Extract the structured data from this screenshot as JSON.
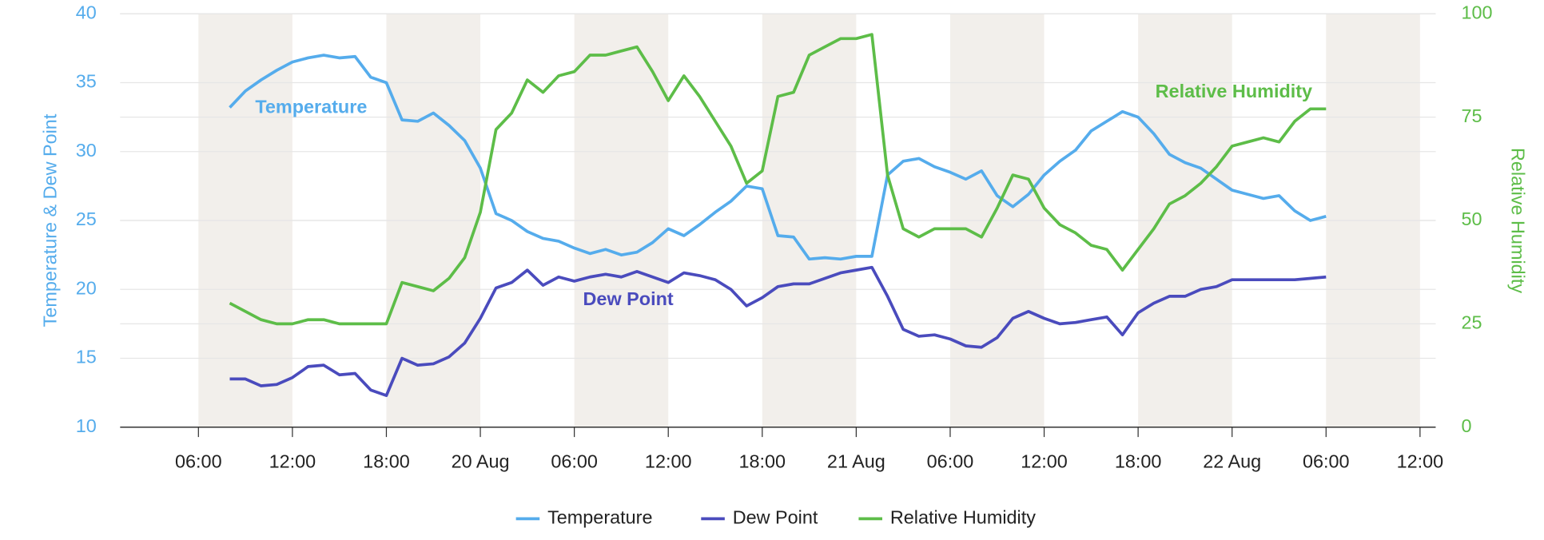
{
  "chart_data": {
    "type": "line",
    "y_axis_title": "Temperature & Dew Point",
    "y2_axis_title": "Relative Humidity",
    "annotations": [
      "Temperature",
      "Dew Point",
      "Relative Humidity"
    ],
    "x": [
      "19 Aug 08:00",
      "19 Aug 09:00",
      "19 Aug 10:00",
      "19 Aug 11:00",
      "19 Aug 12:00",
      "19 Aug 13:00",
      "19 Aug 14:00",
      "19 Aug 15:00",
      "19 Aug 16:00",
      "19 Aug 17:00",
      "19 Aug 18:00",
      "19 Aug 19:00",
      "19 Aug 20:00",
      "19 Aug 21:00",
      "19 Aug 22:00",
      "19 Aug 23:00",
      "20 Aug 00:00",
      "20 Aug 01:00",
      "20 Aug 02:00",
      "20 Aug 03:00",
      "20 Aug 04:00",
      "20 Aug 05:00",
      "20 Aug 06:00",
      "20 Aug 07:00",
      "20 Aug 08:00",
      "20 Aug 09:00",
      "20 Aug 10:00",
      "20 Aug 11:00",
      "20 Aug 12:00",
      "20 Aug 13:00",
      "20 Aug 14:00",
      "20 Aug 15:00",
      "20 Aug 16:00",
      "20 Aug 17:00",
      "20 Aug 18:00",
      "20 Aug 19:00",
      "20 Aug 20:00",
      "20 Aug 21:00",
      "20 Aug 22:00",
      "20 Aug 23:00",
      "21 Aug 00:00",
      "21 Aug 01:00",
      "21 Aug 02:00",
      "21 Aug 03:00",
      "21 Aug 04:00",
      "21 Aug 05:00",
      "21 Aug 06:00",
      "21 Aug 07:00",
      "21 Aug 08:00",
      "21 Aug 09:00",
      "21 Aug 10:00",
      "21 Aug 11:00",
      "21 Aug 12:00",
      "21 Aug 13:00",
      "21 Aug 14:00",
      "21 Aug 15:00",
      "21 Aug 16:00",
      "21 Aug 17:00",
      "21 Aug 18:00",
      "21 Aug 19:00",
      "21 Aug 20:00",
      "21 Aug 21:00",
      "21 Aug 22:00",
      "21 Aug 23:00",
      "22 Aug 00:00",
      "22 Aug 01:00",
      "22 Aug 02:00",
      "22 Aug 03:00",
      "22 Aug 04:00",
      "22 Aug 05:00",
      "22 Aug 06:00"
    ],
    "series": [
      {
        "name": "Temperature",
        "color": "#55acec",
        "axis": "y",
        "values": [
          33.2,
          34.4,
          35.2,
          35.9,
          36.5,
          36.8,
          37.0,
          36.8,
          36.9,
          35.4,
          35.0,
          32.3,
          32.2,
          32.8,
          31.9,
          30.8,
          28.8,
          25.5,
          25.0,
          24.2,
          23.7,
          23.5,
          23.0,
          22.6,
          22.9,
          22.5,
          22.7,
          23.4,
          24.4,
          23.9,
          24.7,
          25.6,
          26.4,
          27.5,
          27.3,
          23.9,
          23.8,
          22.2,
          22.3,
          22.2,
          22.4,
          22.4,
          28.3,
          29.3,
          29.5,
          28.9,
          28.5,
          28.0,
          28.6,
          26.8,
          26.0,
          26.9,
          28.3,
          29.3,
          30.1,
          31.5,
          32.2,
          32.9,
          32.5,
          31.3,
          29.8,
          29.2,
          28.8,
          28.0,
          27.2,
          26.9,
          26.6,
          26.8,
          25.7,
          25.0,
          25.3
        ]
      },
      {
        "name": "Dew Point",
        "color": "#4a4bbd",
        "axis": "y",
        "values": [
          13.5,
          13.5,
          13.0,
          13.1,
          13.6,
          14.4,
          14.5,
          13.8,
          13.9,
          12.7,
          12.3,
          15.0,
          14.5,
          14.6,
          15.1,
          16.1,
          17.9,
          20.1,
          20.5,
          21.4,
          20.3,
          20.9,
          20.6,
          20.9,
          21.1,
          20.9,
          21.3,
          20.9,
          20.5,
          21.2,
          21.0,
          20.7,
          20.0,
          18.8,
          19.4,
          20.2,
          20.4,
          20.4,
          20.8,
          21.2,
          21.4,
          21.6,
          19.5,
          17.1,
          16.6,
          16.7,
          16.4,
          15.9,
          15.8,
          16.5,
          17.9,
          18.4,
          17.9,
          17.5,
          17.6,
          17.8,
          18.0,
          16.7,
          18.3,
          19.0,
          19.5,
          19.5,
          20.0,
          20.2,
          20.7,
          20.7,
          20.7,
          20.7,
          20.7,
          20.8,
          20.9
        ]
      },
      {
        "name": "Relative Humidity",
        "color": "#5dbd48",
        "axis": "y2",
        "values": [
          30,
          28,
          26,
          25,
          25,
          26,
          26,
          25,
          25,
          25,
          25,
          35,
          34,
          33,
          36,
          41,
          52,
          72,
          76,
          84,
          81,
          85,
          86,
          90,
          90,
          91,
          92,
          86,
          79,
          85,
          80,
          74,
          68,
          59,
          62,
          80,
          81,
          90,
          92,
          94,
          94,
          95,
          61,
          48,
          46,
          48,
          48,
          48,
          46,
          53,
          61,
          60,
          53,
          49,
          47,
          44,
          43,
          38,
          43,
          48,
          54,
          56,
          59,
          63,
          68,
          69,
          70,
          69,
          74,
          77,
          77
        ]
      }
    ],
    "xlim": [
      "19 Aug 01:00",
      "22 Aug 13:00"
    ],
    "xticks": [
      {
        "value": "19 Aug 06:00",
        "label": "06:00"
      },
      {
        "value": "19 Aug 12:00",
        "label": "12:00"
      },
      {
        "value": "19 Aug 18:00",
        "label": "18:00"
      },
      {
        "value": "20 Aug 00:00",
        "label": "20 Aug"
      },
      {
        "value": "20 Aug 06:00",
        "label": "06:00"
      },
      {
        "value": "20 Aug 12:00",
        "label": "12:00"
      },
      {
        "value": "20 Aug 18:00",
        "label": "18:00"
      },
      {
        "value": "21 Aug 00:00",
        "label": "21 Aug"
      },
      {
        "value": "21 Aug 06:00",
        "label": "06:00"
      },
      {
        "value": "21 Aug 12:00",
        "label": "12:00"
      },
      {
        "value": "21 Aug 18:00",
        "label": "18:00"
      },
      {
        "value": "22 Aug 00:00",
        "label": "22 Aug"
      },
      {
        "value": "22 Aug 06:00",
        "label": "06:00"
      },
      {
        "value": "22 Aug 12:00",
        "label": "12:00"
      }
    ],
    "ylim": [
      10,
      40
    ],
    "yticks": [
      10,
      15,
      20,
      25,
      30,
      35,
      40
    ],
    "y2lim": [
      0,
      100
    ],
    "y2ticks": [
      0,
      25,
      50,
      75,
      100
    ],
    "grid": true,
    "legend": "bottom"
  }
}
